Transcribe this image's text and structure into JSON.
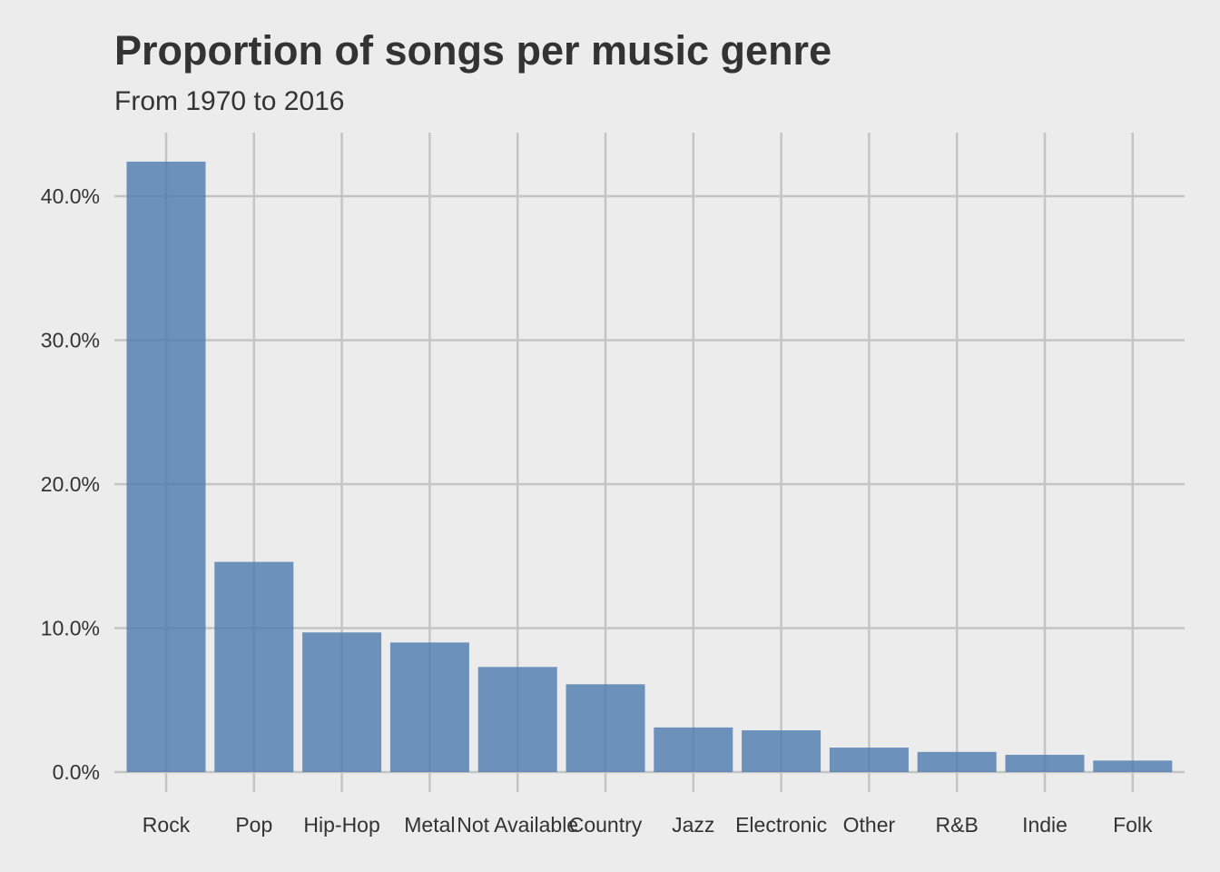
{
  "chart_data": {
    "type": "bar",
    "title": "Proportion of songs per music genre",
    "subtitle": "From 1970 to 2016",
    "xlabel": "",
    "ylabel": "",
    "categories": [
      "Rock",
      "Pop",
      "Hip-Hop",
      "Metal",
      "Not Available",
      "Country",
      "Jazz",
      "Electronic",
      "Other",
      "R&B",
      "Indie",
      "Folk"
    ],
    "values": [
      0.424,
      0.146,
      0.097,
      0.09,
      0.073,
      0.061,
      0.031,
      0.029,
      0.017,
      0.014,
      0.012,
      0.008
    ],
    "yticks": [
      0,
      0.1,
      0.2,
      0.3,
      0.4
    ],
    "ytick_labels": [
      "0.0%",
      "10.0%",
      "20.0%",
      "30.0%",
      "40.0%"
    ],
    "ylim": [
      0,
      0.44
    ],
    "grid": true,
    "legend": "none",
    "colors": {
      "bar": "#4c7bae",
      "background": "#ececec",
      "grid": "#c4c4c4",
      "text": "#333333"
    }
  }
}
